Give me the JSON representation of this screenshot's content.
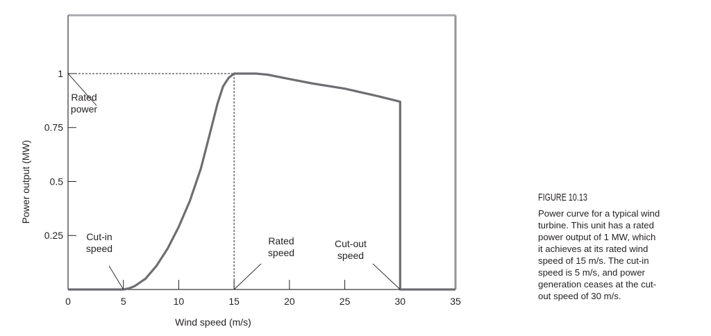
{
  "chart_data": {
    "type": "line",
    "xlabel": "Wind speed (m/s)",
    "ylabel": "Power output (MW)",
    "xlim": [
      0,
      35
    ],
    "ylim": [
      0,
      1.27
    ],
    "xticks": [
      0,
      5,
      10,
      15,
      20,
      25,
      30,
      35
    ],
    "yticks": [
      0.25,
      0.5,
      0.75,
      1
    ],
    "ytick_labels": [
      "0.25",
      "0.5",
      "0.75",
      "1"
    ],
    "grid": false,
    "line_color": "#6d6e71",
    "series": [
      {
        "x": [
          0,
          5,
          5.5,
          6,
          7,
          8,
          9,
          10,
          11,
          12,
          13,
          13.5,
          14,
          14.5,
          15,
          16,
          17,
          18,
          20,
          22,
          25,
          28,
          30,
          30,
          35
        ],
        "y": [
          0,
          0,
          0.005,
          0.015,
          0.05,
          0.11,
          0.19,
          0.29,
          0.41,
          0.56,
          0.76,
          0.86,
          0.94,
          0.98,
          1.0,
          1.0,
          1.0,
          0.995,
          0.975,
          0.955,
          0.93,
          0.895,
          0.87,
          0,
          0
        ]
      }
    ],
    "reference_lines": {
      "rated_power": 1,
      "rated_speed": 15
    },
    "annotations": [
      {
        "text": [
          "Rated",
          "power"
        ],
        "points_to": [
          0,
          1
        ]
      },
      {
        "text": [
          "Cut-in",
          "speed"
        ],
        "points_to": [
          5,
          0
        ]
      },
      {
        "text": [
          "Rated",
          "speed"
        ],
        "points_to": [
          15,
          0
        ]
      },
      {
        "text": [
          "Cut-out",
          "speed"
        ],
        "points_to": [
          30,
          0
        ]
      }
    ]
  },
  "caption": {
    "title": "FIGURE 10.13",
    "lines": [
      "Power curve for a typical wind",
      "turbine. This unit has a rated",
      "power output of 1 MW, which",
      "it achieves at its rated wind",
      "speed of 15 m/s. The cut-in",
      "speed is 5 m/s, and power",
      "generation ceases at the cut-",
      "out speed of 30 m/s."
    ]
  }
}
